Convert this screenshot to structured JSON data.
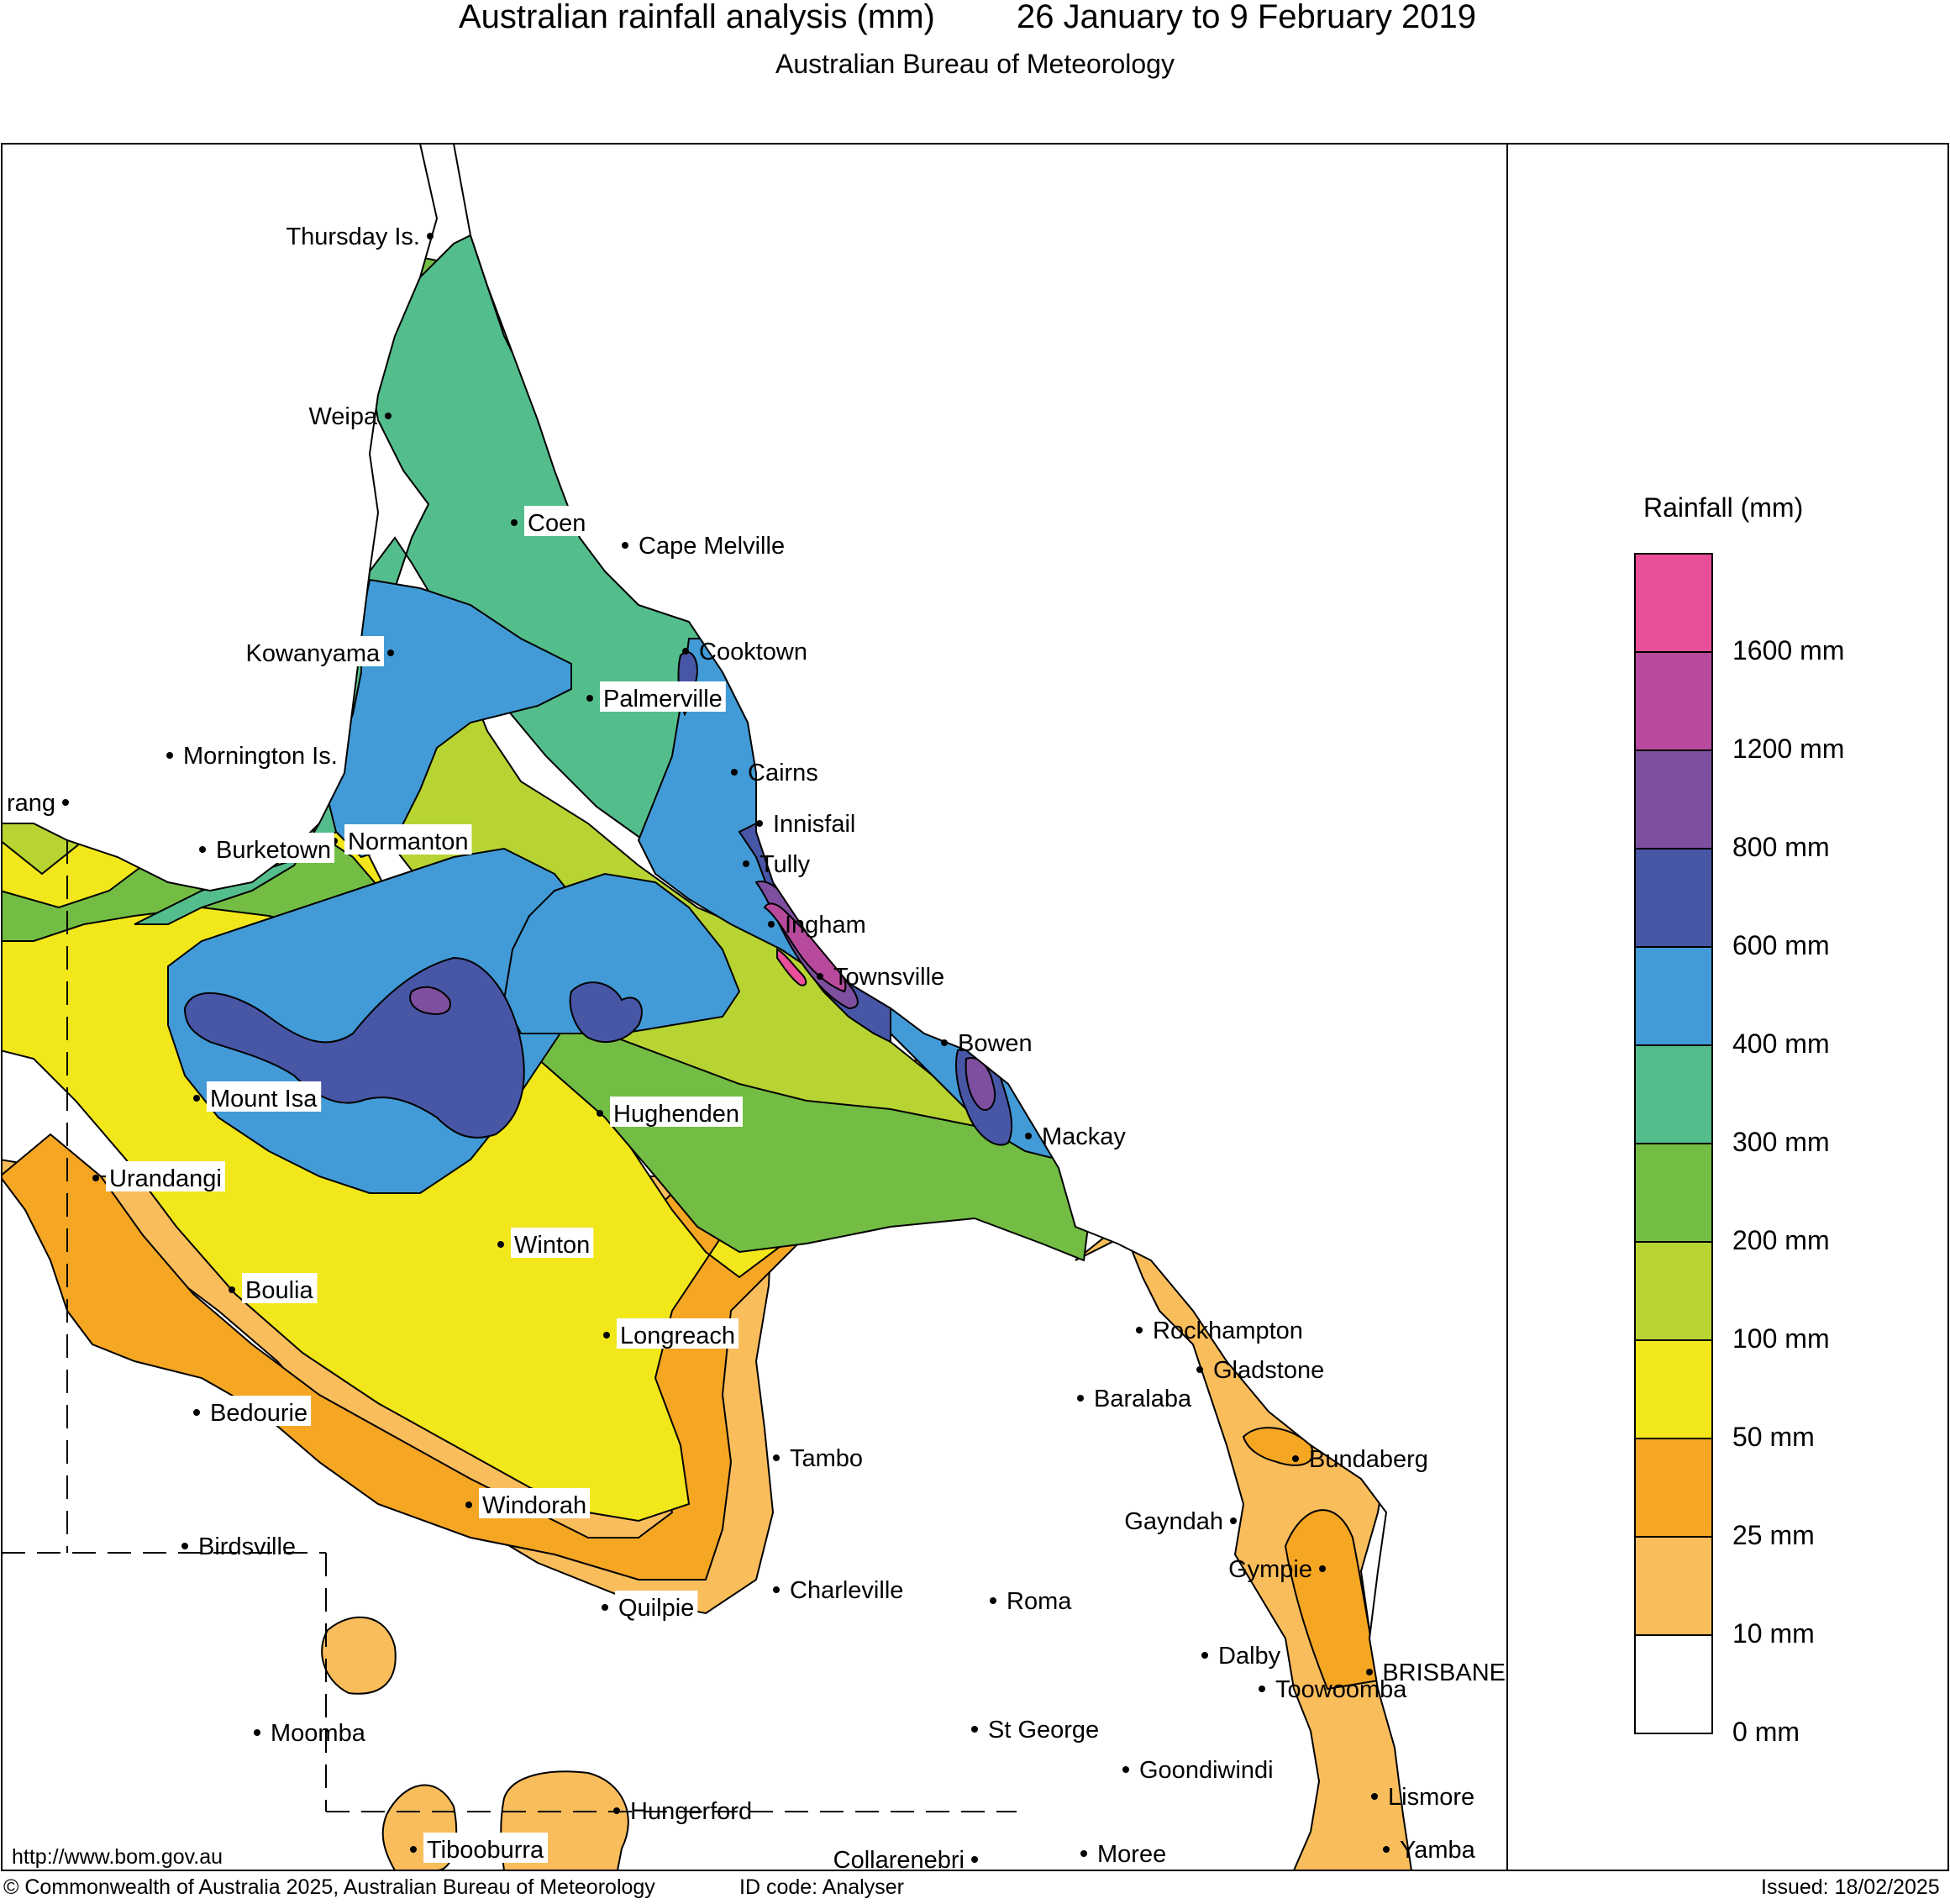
{
  "header": {
    "title_left": "Australian rainfall analysis (mm)",
    "title_right": "26 January to 9 February 2019",
    "subtitle": "Australian Bureau of Meteorology"
  },
  "legend": {
    "title": "Rainfall (mm)",
    "classes": [
      {
        "label": "0 mm",
        "color": "#ffffff"
      },
      {
        "label": "10 mm",
        "color": "#f9bd5c"
      },
      {
        "label": "25 mm",
        "color": "#f5a623"
      },
      {
        "label": "50 mm",
        "color": "#f2e71b"
      },
      {
        "label": "100 mm",
        "color": "#b7d433"
      },
      {
        "label": "200 mm",
        "color": "#74bd44"
      },
      {
        "label": "300 mm",
        "color": "#54bd8c"
      },
      {
        "label": "400 mm",
        "color": "#429bd6"
      },
      {
        "label": "600 mm",
        "color": "#4856a6"
      },
      {
        "label": "800 mm",
        "color": "#7f4f9f"
      },
      {
        "label": "1200 mm",
        "color": "#b84a9d"
      },
      {
        "label": "1600 mm",
        "color": "#e94e98"
      }
    ]
  },
  "places": [
    {
      "name": "Thursday Is."
    },
    {
      "name": "Weipa"
    },
    {
      "name": "Coen"
    },
    {
      "name": "Cape Melville"
    },
    {
      "name": "Cooktown"
    },
    {
      "name": "Kowanyama"
    },
    {
      "name": "Palmerville"
    },
    {
      "name": "Mornington Is."
    },
    {
      "name": "Cairns"
    },
    {
      "name": "rang"
    },
    {
      "name": "Innisfail"
    },
    {
      "name": "Normanton"
    },
    {
      "name": "Burketown"
    },
    {
      "name": "Tully"
    },
    {
      "name": "Ingham"
    },
    {
      "name": "Townsville"
    },
    {
      "name": "Bowen"
    },
    {
      "name": "Mount Isa"
    },
    {
      "name": "Hughenden"
    },
    {
      "name": "Mackay"
    },
    {
      "name": "Urandangi"
    },
    {
      "name": "Winton"
    },
    {
      "name": "Boulia"
    },
    {
      "name": "Rockhampton"
    },
    {
      "name": "Longreach"
    },
    {
      "name": "Gladstone"
    },
    {
      "name": "Baralaba"
    },
    {
      "name": "Bedourie"
    },
    {
      "name": "Bundaberg"
    },
    {
      "name": "Tambo"
    },
    {
      "name": "Windorah"
    },
    {
      "name": "Gayndah"
    },
    {
      "name": "Birdsville"
    },
    {
      "name": "Gympie"
    },
    {
      "name": "Charleville"
    },
    {
      "name": "Roma"
    },
    {
      "name": "Quilpie"
    },
    {
      "name": "Dalby"
    },
    {
      "name": "BRISBANE"
    },
    {
      "name": "Toowoomba"
    },
    {
      "name": "Moomba"
    },
    {
      "name": "St George"
    },
    {
      "name": "Goondiwindi"
    },
    {
      "name": "Hungerford"
    },
    {
      "name": "Lismore"
    },
    {
      "name": "Tibooburra"
    },
    {
      "name": "Yamba"
    },
    {
      "name": "Collarenebri"
    },
    {
      "name": "Moree"
    }
  ],
  "footer": {
    "url": "http://www.bom.gov.au",
    "copyright": "Commonwealth of Australia 2025, Australian Bureau of Meteorology",
    "id_code": "ID code: Analyser",
    "issued": "Issued: 18/02/2025"
  }
}
